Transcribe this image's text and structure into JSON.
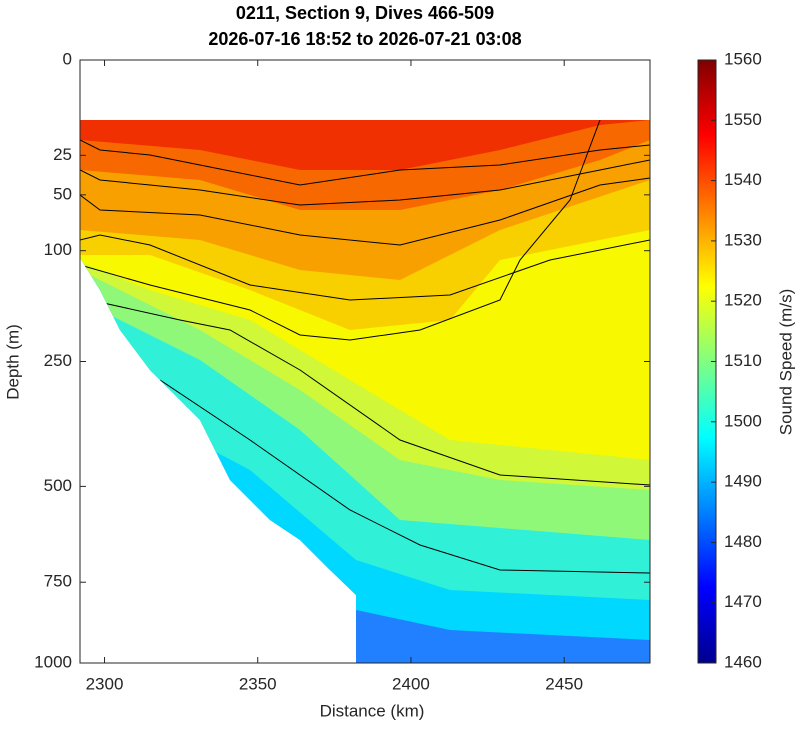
{
  "chart_data": {
    "type": "contourf",
    "title": [
      "0211, Section 9, Dives 466-509",
      "2026-07-16 18:52 to 2026-07-21 03:08"
    ],
    "x_label": "Distance (km)",
    "y_label": "Depth (m)",
    "colorbar_label": "Sound Speed (m/s)",
    "xlim": [
      2292,
      2478
    ],
    "xticks": [
      2300,
      2350,
      2400,
      2450
    ],
    "ylim": [
      0,
      1000
    ],
    "yscale": "sqrt",
    "y_reversed": true,
    "yticks": [
      0,
      25,
      50,
      100,
      250,
      500,
      750,
      1000
    ],
    "clim": [
      1460,
      1560
    ],
    "cticks": [
      1460,
      1470,
      1480,
      1490,
      1500,
      1510,
      1520,
      1530,
      1540,
      1550,
      1560
    ],
    "colormap": [
      "#00008f",
      "#0000ff",
      "#0080ff",
      "#00ffff",
      "#80ff80",
      "#ffff00",
      "#ff8000",
      "#ff0000",
      "#800000"
    ]
  }
}
